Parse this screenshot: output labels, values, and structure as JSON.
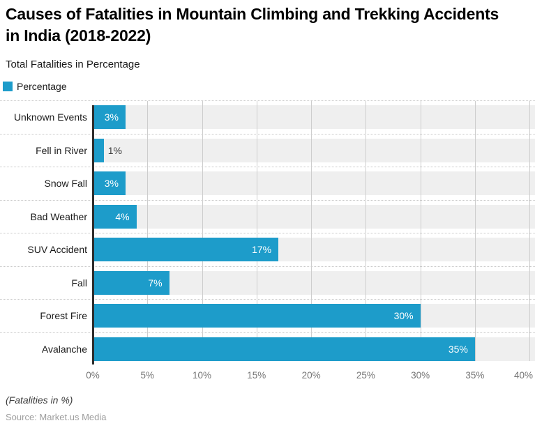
{
  "header": {
    "title": "Causes of Fatalities in Mountain Climbing and Trekking Accidents in India (2018-2022)",
    "subtitle": "Total Fatalities in Percentage"
  },
  "legend": {
    "label": "Percentage",
    "swatch_color": "#1D9CCA"
  },
  "chart_data": {
    "type": "bar",
    "orientation": "horizontal",
    "title": "Causes of Fatalities in Mountain Climbing and Trekking Accidents in India (2018-2022)",
    "subtitle": "Total Fatalities in Percentage",
    "series_name": "Percentage",
    "categories": [
      "Unknown Events",
      "Fell in River",
      "Snow Fall",
      "Bad Weather",
      "SUV Accident",
      "Fall",
      "Forest Fire",
      "Avalanche"
    ],
    "values": [
      3,
      1,
      3,
      4,
      17,
      7,
      30,
      35
    ],
    "value_labels": [
      "3%",
      "1%",
      "3%",
      "4%",
      "17%",
      "7%",
      "30%",
      "35%"
    ],
    "xlabel": "",
    "ylabel": "",
    "x_ticks": [
      0,
      5,
      10,
      15,
      20,
      25,
      30,
      35,
      40
    ],
    "x_tick_labels": [
      "0%",
      "5%",
      "10%",
      "15%",
      "20%",
      "25%",
      "30%",
      "35%",
      "40%"
    ],
    "xlim": [
      0,
      40.5
    ],
    "grid": true,
    "legend_position": "top-left",
    "bar_color": "#1D9CCA",
    "track_color": "#EFEFEF",
    "gridline_color": "#CDCDCD",
    "axis_line_color": "#2D2D2D"
  },
  "footer": {
    "note": "(Fatalities in %)",
    "source": "Source: Market.us Media"
  }
}
